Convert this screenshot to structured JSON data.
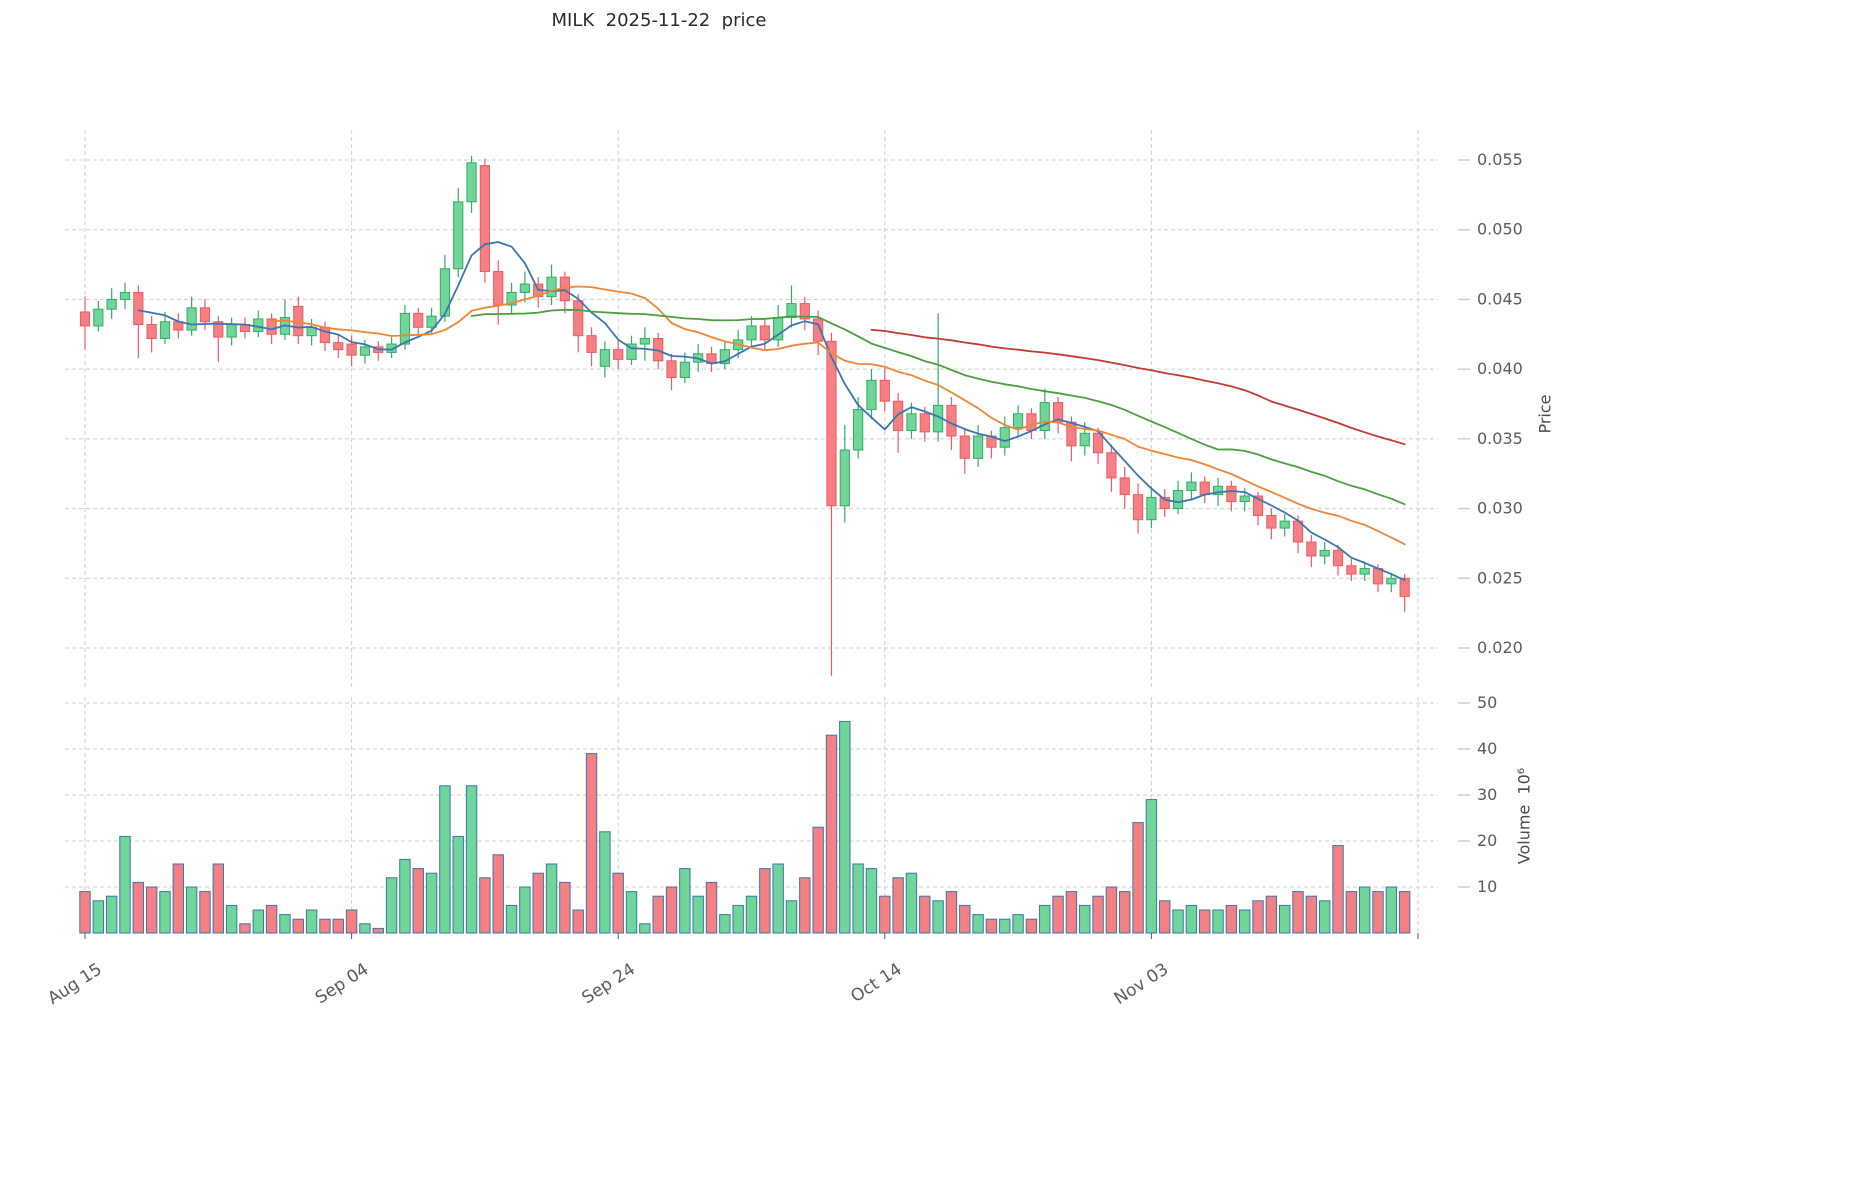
{
  "title": "MILK  2025-11-22  price",
  "labels": {
    "price_axis": "Price",
    "volume_axis": "Volume  10⁶"
  },
  "chart_data": {
    "type": "candlestick",
    "title": "MILK  2025-11-22  price",
    "ylabel_right": "Price",
    "ylabel2_right": "Volume 10⁶",
    "legend_position": "none",
    "grid": "dashed",
    "price_axis_range": [
      0.017,
      0.0572
    ],
    "volume_axis_range": [
      0,
      52
    ],
    "price_ticks": [
      {
        "value": 0.055,
        "label": "0.055"
      },
      {
        "value": 0.05,
        "label": "0.050"
      },
      {
        "value": 0.045,
        "label": "0.045"
      },
      {
        "value": 0.04,
        "label": "0.040"
      },
      {
        "value": 0.035,
        "label": "0.035"
      },
      {
        "value": 0.03,
        "label": "0.030"
      },
      {
        "value": 0.025,
        "label": "0.025"
      },
      {
        "value": 0.02,
        "label": "0.020"
      }
    ],
    "volume_ticks": [
      {
        "value": 50,
        "label": "50"
      },
      {
        "value": 40,
        "label": "40"
      },
      {
        "value": 30,
        "label": "30"
      },
      {
        "value": 20,
        "label": "20"
      },
      {
        "value": 10,
        "label": "10"
      }
    ],
    "x_ticks": [
      {
        "label": "Aug 15",
        "index": 0
      },
      {
        "label": "Sep 04",
        "index": 20
      },
      {
        "label": "Sep 24",
        "index": 40
      },
      {
        "label": "Oct 14",
        "index": 60
      },
      {
        "label": "Nov 03",
        "index": 80
      },
      {
        "label": "",
        "index": 100
      }
    ],
    "moving_averages": [
      {
        "name": "ma-short",
        "period": 5,
        "color": "#3b76af"
      },
      {
        "name": "ma-mid",
        "period": 15,
        "color": "#ee8636"
      },
      {
        "name": "ma-long",
        "period": 30,
        "color": "#4d9e42"
      },
      {
        "name": "ma-longest",
        "period": 60,
        "color": "#c23b33"
      }
    ],
    "colors": {
      "up_fill": "#6fd598",
      "up_border": "#35ac66",
      "down_fill": "#f58084",
      "down_border": "#ee5a63",
      "volume_border": "#3b76af",
      "grid": "#cfcfcf",
      "axis_text": "#5b5b5b"
    },
    "candle_fields": [
      "date",
      "open",
      "high",
      "low",
      "close",
      "volume"
    ],
    "candles": [
      [
        "2025-08-15",
        0.0441,
        0.0452,
        0.0414,
        0.0431,
        9
      ],
      [
        "2025-08-16",
        0.0431,
        0.0449,
        0.0427,
        0.0443,
        7
      ],
      [
        "2025-08-17",
        0.0443,
        0.0458,
        0.0436,
        0.045,
        8
      ],
      [
        "2025-08-18",
        0.045,
        0.0462,
        0.0443,
        0.0455,
        21
      ],
      [
        "2025-08-19",
        0.0455,
        0.046,
        0.0408,
        0.0432,
        11
      ],
      [
        "2025-08-20",
        0.0432,
        0.0438,
        0.0412,
        0.0422,
        10
      ],
      [
        "2025-08-21",
        0.0422,
        0.0441,
        0.0418,
        0.0434,
        9
      ],
      [
        "2025-08-22",
        0.0434,
        0.044,
        0.0422,
        0.0428,
        15
      ],
      [
        "2025-08-23",
        0.0428,
        0.0452,
        0.0424,
        0.0444,
        10
      ],
      [
        "2025-08-24",
        0.0444,
        0.045,
        0.0428,
        0.0434,
        9
      ],
      [
        "2025-08-25",
        0.0434,
        0.0438,
        0.0405,
        0.0423,
        15
      ],
      [
        "2025-08-26",
        0.0423,
        0.0437,
        0.0417,
        0.0432,
        6
      ],
      [
        "2025-08-27",
        0.0432,
        0.0437,
        0.0422,
        0.0427,
        2
      ],
      [
        "2025-08-28",
        0.0427,
        0.0442,
        0.0423,
        0.0436,
        5
      ],
      [
        "2025-08-29",
        0.0436,
        0.044,
        0.0418,
        0.0425,
        6
      ],
      [
        "2025-08-30",
        0.0425,
        0.045,
        0.0421,
        0.0437,
        4
      ],
      [
        "2025-08-31",
        0.0445,
        0.0452,
        0.0418,
        0.0424,
        3
      ],
      [
        "2025-09-01",
        0.0424,
        0.0436,
        0.0417,
        0.043,
        5
      ],
      [
        "2025-09-02",
        0.043,
        0.0434,
        0.0413,
        0.0419,
        3
      ],
      [
        "2025-09-03",
        0.0419,
        0.0425,
        0.0408,
        0.0414,
        3
      ],
      [
        "2025-09-04",
        0.0418,
        0.0424,
        0.0402,
        0.041,
        5
      ],
      [
        "2025-09-05",
        0.041,
        0.0421,
        0.0404,
        0.0416,
        2
      ],
      [
        "2025-09-06",
        0.0416,
        0.042,
        0.0406,
        0.0412,
        1
      ],
      [
        "2025-09-07",
        0.0412,
        0.0423,
        0.0408,
        0.0418,
        12
      ],
      [
        "2025-09-08",
        0.0418,
        0.0446,
        0.0414,
        0.044,
        16
      ],
      [
        "2025-09-09",
        0.044,
        0.0444,
        0.0424,
        0.043,
        14
      ],
      [
        "2025-09-10",
        0.043,
        0.0444,
        0.0426,
        0.0438,
        13
      ],
      [
        "2025-09-11",
        0.0438,
        0.0482,
        0.0434,
        0.0472,
        32
      ],
      [
        "2025-09-12",
        0.0472,
        0.053,
        0.0466,
        0.052,
        21
      ],
      [
        "2025-09-13",
        0.052,
        0.0553,
        0.0512,
        0.0548,
        32
      ],
      [
        "2025-09-14",
        0.0546,
        0.0551,
        0.0462,
        0.047,
        12
      ],
      [
        "2025-09-15",
        0.047,
        0.0478,
        0.0432,
        0.0446,
        17
      ],
      [
        "2025-09-16",
        0.0446,
        0.0462,
        0.044,
        0.0455,
        6
      ],
      [
        "2025-09-17",
        0.0455,
        0.047,
        0.0448,
        0.0461,
        10
      ],
      [
        "2025-09-18",
        0.0461,
        0.0466,
        0.0444,
        0.0452,
        13
      ],
      [
        "2025-09-19",
        0.0452,
        0.0475,
        0.0446,
        0.0466,
        15
      ],
      [
        "2025-09-20",
        0.0466,
        0.047,
        0.044,
        0.0449,
        11
      ],
      [
        "2025-09-21",
        0.0449,
        0.0454,
        0.0412,
        0.0424,
        5
      ],
      [
        "2025-09-22",
        0.0424,
        0.043,
        0.0402,
        0.0412,
        39
      ],
      [
        "2025-09-23",
        0.0402,
        0.042,
        0.0394,
        0.0414,
        22
      ],
      [
        "2025-09-24",
        0.0414,
        0.0421,
        0.04,
        0.0407,
        13
      ],
      [
        "2025-09-25",
        0.0407,
        0.0424,
        0.0403,
        0.0418,
        9
      ],
      [
        "2025-09-26",
        0.0418,
        0.043,
        0.0406,
        0.0422,
        2
      ],
      [
        "2025-09-27",
        0.0422,
        0.0426,
        0.04,
        0.0406,
        8
      ],
      [
        "2025-09-28",
        0.0406,
        0.0411,
        0.0385,
        0.0394,
        10
      ],
      [
        "2025-09-29",
        0.0394,
        0.0412,
        0.039,
        0.0405,
        14
      ],
      [
        "2025-09-30",
        0.0405,
        0.0418,
        0.0398,
        0.0411,
        8
      ],
      [
        "2025-10-01",
        0.0411,
        0.0416,
        0.0398,
        0.0404,
        11
      ],
      [
        "2025-10-02",
        0.0404,
        0.042,
        0.04,
        0.0414,
        4
      ],
      [
        "2025-10-03",
        0.0414,
        0.0428,
        0.0408,
        0.0421,
        6
      ],
      [
        "2025-10-04",
        0.0421,
        0.0438,
        0.0415,
        0.0431,
        8
      ],
      [
        "2025-10-05",
        0.0431,
        0.0436,
        0.0414,
        0.0421,
        14
      ],
      [
        "2025-10-06",
        0.0421,
        0.0446,
        0.0416,
        0.0437,
        15
      ],
      [
        "2025-10-07",
        0.0437,
        0.046,
        0.043,
        0.0447,
        7
      ],
      [
        "2025-10-08",
        0.0447,
        0.0452,
        0.0428,
        0.0436,
        12
      ],
      [
        "2025-10-09",
        0.0436,
        0.0442,
        0.041,
        0.042,
        23
      ],
      [
        "2025-10-10",
        0.042,
        0.0426,
        0.018,
        0.0302,
        43
      ],
      [
        "2025-10-11",
        0.0302,
        0.036,
        0.029,
        0.0342,
        46
      ],
      [
        "2025-10-12",
        0.0342,
        0.038,
        0.0336,
        0.0371,
        15
      ],
      [
        "2025-10-13",
        0.0371,
        0.04,
        0.0364,
        0.0392,
        14
      ],
      [
        "2025-10-14",
        0.0392,
        0.0401,
        0.037,
        0.0377,
        8
      ],
      [
        "2025-10-15",
        0.0377,
        0.0383,
        0.034,
        0.0356,
        12
      ],
      [
        "2025-10-16",
        0.0356,
        0.0376,
        0.035,
        0.0368,
        13
      ],
      [
        "2025-10-17",
        0.0368,
        0.0373,
        0.0348,
        0.0355,
        8
      ],
      [
        "2025-10-18",
        0.0355,
        0.044,
        0.0348,
        0.0374,
        7
      ],
      [
        "2025-10-19",
        0.0374,
        0.038,
        0.0342,
        0.0352,
        9
      ],
      [
        "2025-10-20",
        0.0352,
        0.0358,
        0.0325,
        0.0336,
        6
      ],
      [
        "2025-10-21",
        0.0336,
        0.036,
        0.033,
        0.0352,
        4
      ],
      [
        "2025-10-22",
        0.0352,
        0.0356,
        0.0336,
        0.0344,
        3
      ],
      [
        "2025-10-23",
        0.0344,
        0.0366,
        0.0338,
        0.0358,
        3
      ],
      [
        "2025-10-24",
        0.0358,
        0.0374,
        0.0352,
        0.0368,
        4
      ],
      [
        "2025-10-25",
        0.0368,
        0.0372,
        0.035,
        0.0356,
        3
      ],
      [
        "2025-10-26",
        0.0356,
        0.0386,
        0.035,
        0.0376,
        6
      ],
      [
        "2025-10-27",
        0.0376,
        0.038,
        0.0354,
        0.0362,
        8
      ],
      [
        "2025-10-28",
        0.0362,
        0.0366,
        0.0334,
        0.0345,
        9
      ],
      [
        "2025-10-29",
        0.0345,
        0.0362,
        0.0338,
        0.0354,
        6
      ],
      [
        "2025-10-30",
        0.0354,
        0.0358,
        0.0332,
        0.034,
        8
      ],
      [
        "2025-10-31",
        0.034,
        0.0346,
        0.0312,
        0.0322,
        10
      ],
      [
        "2025-11-01",
        0.0322,
        0.033,
        0.03,
        0.031,
        9
      ],
      [
        "2025-11-02",
        0.031,
        0.0318,
        0.0282,
        0.0292,
        24
      ],
      [
        "2025-11-03",
        0.0292,
        0.0316,
        0.0286,
        0.0308,
        29
      ],
      [
        "2025-11-04",
        0.0308,
        0.0314,
        0.0294,
        0.03,
        7
      ],
      [
        "2025-11-05",
        0.03,
        0.032,
        0.0296,
        0.0313,
        5
      ],
      [
        "2025-11-06",
        0.0313,
        0.0326,
        0.0306,
        0.0319,
        6
      ],
      [
        "2025-11-07",
        0.0319,
        0.0323,
        0.0304,
        0.031,
        5
      ],
      [
        "2025-11-08",
        0.031,
        0.0322,
        0.0302,
        0.0316,
        5
      ],
      [
        "2025-11-09",
        0.0316,
        0.032,
        0.0298,
        0.0305,
        6
      ],
      [
        "2025-11-10",
        0.0305,
        0.0315,
        0.0298,
        0.0309,
        5
      ],
      [
        "2025-11-11",
        0.0309,
        0.0312,
        0.0288,
        0.0295,
        7
      ],
      [
        "2025-11-12",
        0.0295,
        0.03,
        0.0278,
        0.0286,
        8
      ],
      [
        "2025-11-13",
        0.0286,
        0.0296,
        0.028,
        0.0291,
        6
      ],
      [
        "2025-11-14",
        0.0291,
        0.0295,
        0.0268,
        0.0276,
        9
      ],
      [
        "2025-11-15",
        0.0276,
        0.0281,
        0.0258,
        0.0266,
        8
      ],
      [
        "2025-11-16",
        0.0266,
        0.0276,
        0.026,
        0.027,
        7
      ],
      [
        "2025-11-17",
        0.027,
        0.0274,
        0.0252,
        0.0259,
        19
      ],
      [
        "2025-11-18",
        0.0259,
        0.0264,
        0.0248,
        0.0253,
        9
      ],
      [
        "2025-11-19",
        0.0253,
        0.0262,
        0.0248,
        0.0257,
        10
      ],
      [
        "2025-11-20",
        0.0257,
        0.026,
        0.024,
        0.0246,
        9
      ],
      [
        "2025-11-21",
        0.0246,
        0.0254,
        0.024,
        0.025,
        10
      ],
      [
        "2025-11-22",
        0.025,
        0.0253,
        0.0226,
        0.0237,
        9
      ]
    ]
  }
}
